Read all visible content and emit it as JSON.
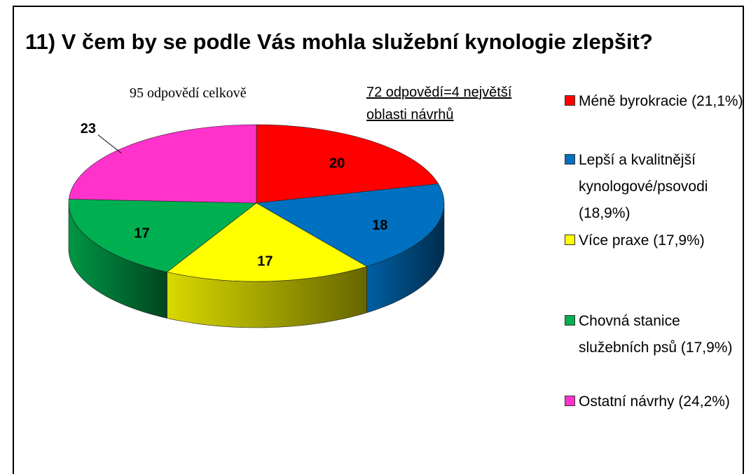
{
  "chart_data": {
    "type": "pie3d",
    "title": "11) V čem by se podle Vás mohla služební kynologie zlepšit?",
    "annotations": [
      "95 odpovědí celkově",
      "72 odpovědí=4 největší oblasti návrhů"
    ],
    "categories": [
      "Méně byrokracie (21,1%)",
      "Lepší a kvalitnější kynologové/psovodi (18,9%)",
      "Více praxe (17,9%)",
      "Chovná stanice služebních psů (17,9%)",
      "Ostatní návrhy (24,2%)"
    ],
    "values": [
      20,
      18,
      17,
      17,
      23
    ],
    "colors": [
      "#ff0000",
      "#0070c0",
      "#ffff00",
      "#00b050",
      "#ff33cc"
    ],
    "legend": "right"
  }
}
